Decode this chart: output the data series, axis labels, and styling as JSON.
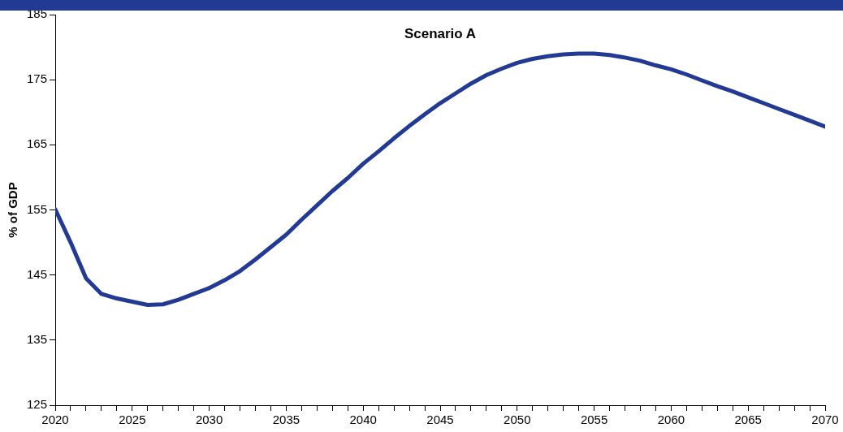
{
  "chart_data": {
    "type": "line",
    "title": "Scenario A",
    "ylabel": "% of GDP",
    "x": [
      2020,
      2021,
      2022,
      2023,
      2024,
      2025,
      2026,
      2027,
      2028,
      2029,
      2030,
      2031,
      2032,
      2033,
      2034,
      2035,
      2036,
      2037,
      2038,
      2039,
      2040,
      2041,
      2042,
      2043,
      2044,
      2045,
      2046,
      2047,
      2048,
      2049,
      2050,
      2051,
      2052,
      2053,
      2054,
      2055,
      2056,
      2057,
      2058,
      2059,
      2060,
      2061,
      2062,
      2063,
      2064,
      2065,
      2066,
      2067,
      2068,
      2069,
      2070
    ],
    "series": [
      {
        "color": "#233a94",
        "values": [
          155.1,
          150,
          144.5,
          142.1,
          141.4,
          140.9,
          140.4,
          140.5,
          141.2,
          142.1,
          143,
          144.2,
          145.6,
          147.4,
          149.3,
          151.2,
          153.5,
          155.7,
          157.9,
          159.9,
          162.1,
          164,
          166,
          167.9,
          169.7,
          171.4,
          172.9,
          174.4,
          175.7,
          176.7,
          177.6,
          178.2,
          178.6,
          178.9,
          179,
          179,
          178.8,
          178.4,
          177.9,
          177.2,
          176.6,
          175.8,
          174.9,
          174,
          173.2,
          172.3,
          171.4,
          170.5,
          169.6,
          168.7,
          167.8
        ]
      }
    ],
    "xlim": [
      2020,
      2070
    ],
    "xticks": [
      2020,
      {
        "value": 2021,
        "label": null
      },
      {
        "value": 2022,
        "label": null
      },
      {
        "value": 2023,
        "label": null
      },
      {
        "value": 2024,
        "label": null
      },
      2025,
      {
        "value": 2026,
        "label": null
      },
      {
        "value": 2027,
        "label": null
      },
      {
        "value": 2028,
        "label": null
      },
      {
        "value": 2029,
        "label": null
      },
      2030,
      {
        "value": 2031,
        "label": null
      },
      {
        "value": 2032,
        "label": null
      },
      {
        "value": 2033,
        "label": null
      },
      {
        "value": 2034,
        "label": null
      },
      2035,
      {
        "value": 2036,
        "label": null
      },
      {
        "value": 2037,
        "label": null
      },
      {
        "value": 2038,
        "label": null
      },
      {
        "value": 2039,
        "label": null
      },
      2040,
      {
        "value": 2041,
        "label": null
      },
      {
        "value": 2042,
        "label": null
      },
      {
        "value": 2043,
        "label": null
      },
      {
        "value": 2044,
        "label": null
      },
      2045,
      {
        "value": 2046,
        "label": null
      },
      {
        "value": 2047,
        "label": null
      },
      {
        "value": 2048,
        "label": null
      },
      {
        "value": 2049,
        "label": null
      },
      2050,
      {
        "value": 2051,
        "label": null
      },
      {
        "value": 2052,
        "label": null
      },
      {
        "value": 2053,
        "label": null
      },
      {
        "value": 2054,
        "label": null
      },
      2055,
      {
        "value": 2056,
        "label": null
      },
      {
        "value": 2057,
        "label": null
      },
      {
        "value": 2058,
        "label": null
      },
      {
        "value": 2059,
        "label": null
      },
      2060,
      {
        "value": 2061,
        "label": null
      },
      {
        "value": 2062,
        "label": null
      },
      {
        "value": 2063,
        "label": null
      },
      {
        "value": 2064,
        "label": null
      },
      2065,
      {
        "value": 2066,
        "label": null
      },
      {
        "value": 2067,
        "label": null
      },
      {
        "value": 2068,
        "label": null
      },
      {
        "value": 2069,
        "label": null
      },
      2070
    ],
    "ylim": [
      125,
      185
    ],
    "yticks": [
      125,
      135,
      145,
      155,
      165,
      175,
      185
    ],
    "grid": false,
    "legend": false,
    "marker": "none",
    "line_style": "solid"
  }
}
